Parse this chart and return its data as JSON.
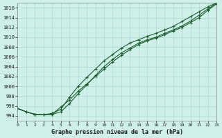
{
  "title": "Graphe pression niveau de la mer (hPa)",
  "background_color": "#cff0ea",
  "grid_color": "#aad8d0",
  "line_color": "#1a5e2a",
  "marker_color": "#1a5e2a",
  "xlim": [
    0,
    23
  ],
  "ylim": [
    993,
    1017
  ],
  "yticks": [
    994,
    996,
    998,
    1000,
    1002,
    1004,
    1006,
    1008,
    1010,
    1012,
    1014,
    1016
  ],
  "xticks": [
    0,
    1,
    2,
    3,
    4,
    5,
    6,
    7,
    8,
    9,
    10,
    11,
    12,
    13,
    14,
    15,
    16,
    17,
    18,
    19,
    20,
    21,
    22,
    23
  ],
  "series1": [
    995.5,
    994.8,
    994.3,
    994.2,
    994.3,
    995.8,
    997.2,
    999.0,
    1000.5,
    1002.0,
    1003.5,
    1005.0,
    1006.3,
    1007.5,
    1008.5,
    1009.3,
    1009.8,
    1010.5,
    1011.3,
    1012.0,
    1013.0,
    1014.0,
    1015.5,
    1016.8
  ],
  "series2": [
    995.5,
    994.8,
    994.3,
    994.2,
    994.3,
    994.8,
    996.5,
    998.5,
    1000.3,
    1002.2,
    1004.0,
    1005.5,
    1006.8,
    1007.8,
    1008.8,
    1009.5,
    1010.0,
    1010.8,
    1011.5,
    1012.3,
    1013.3,
    1014.5,
    1015.8,
    1016.9
  ],
  "series3": [
    995.5,
    994.8,
    994.3,
    994.2,
    994.5,
    995.3,
    997.8,
    1000.0,
    1001.8,
    1003.5,
    1005.2,
    1006.5,
    1007.8,
    1008.8,
    1009.5,
    1010.2,
    1010.8,
    1011.5,
    1012.2,
    1013.2,
    1014.2,
    1015.2,
    1016.2,
    1017.0
  ]
}
